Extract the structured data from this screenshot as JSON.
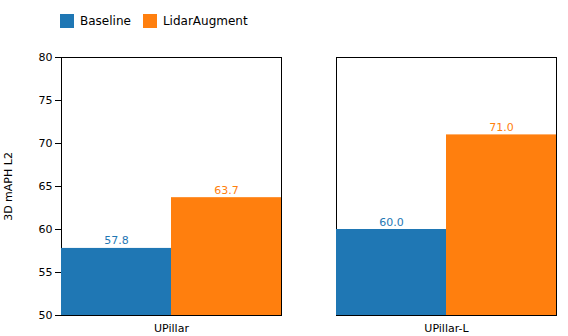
{
  "chart_data": {
    "type": "bar",
    "categories": [
      "UPillar",
      "UPillar-L"
    ],
    "series": [
      {
        "name": "Baseline",
        "color": "#1f77b4",
        "values": [
          57.8,
          60.0
        ],
        "value_labels": [
          "57.8",
          "60.0"
        ]
      },
      {
        "name": "LidarAugment",
        "color": "#ff7f0e",
        "values": [
          63.7,
          71.0
        ],
        "value_labels": [
          "63.7",
          "71.0"
        ]
      }
    ],
    "ylabel": "3D mAPH L2",
    "ylim": [
      50,
      80
    ],
    "yticks": [
      50,
      55,
      60,
      65,
      70,
      75,
      80
    ],
    "grid": false,
    "legend": "upper left",
    "data_labels": true
  }
}
